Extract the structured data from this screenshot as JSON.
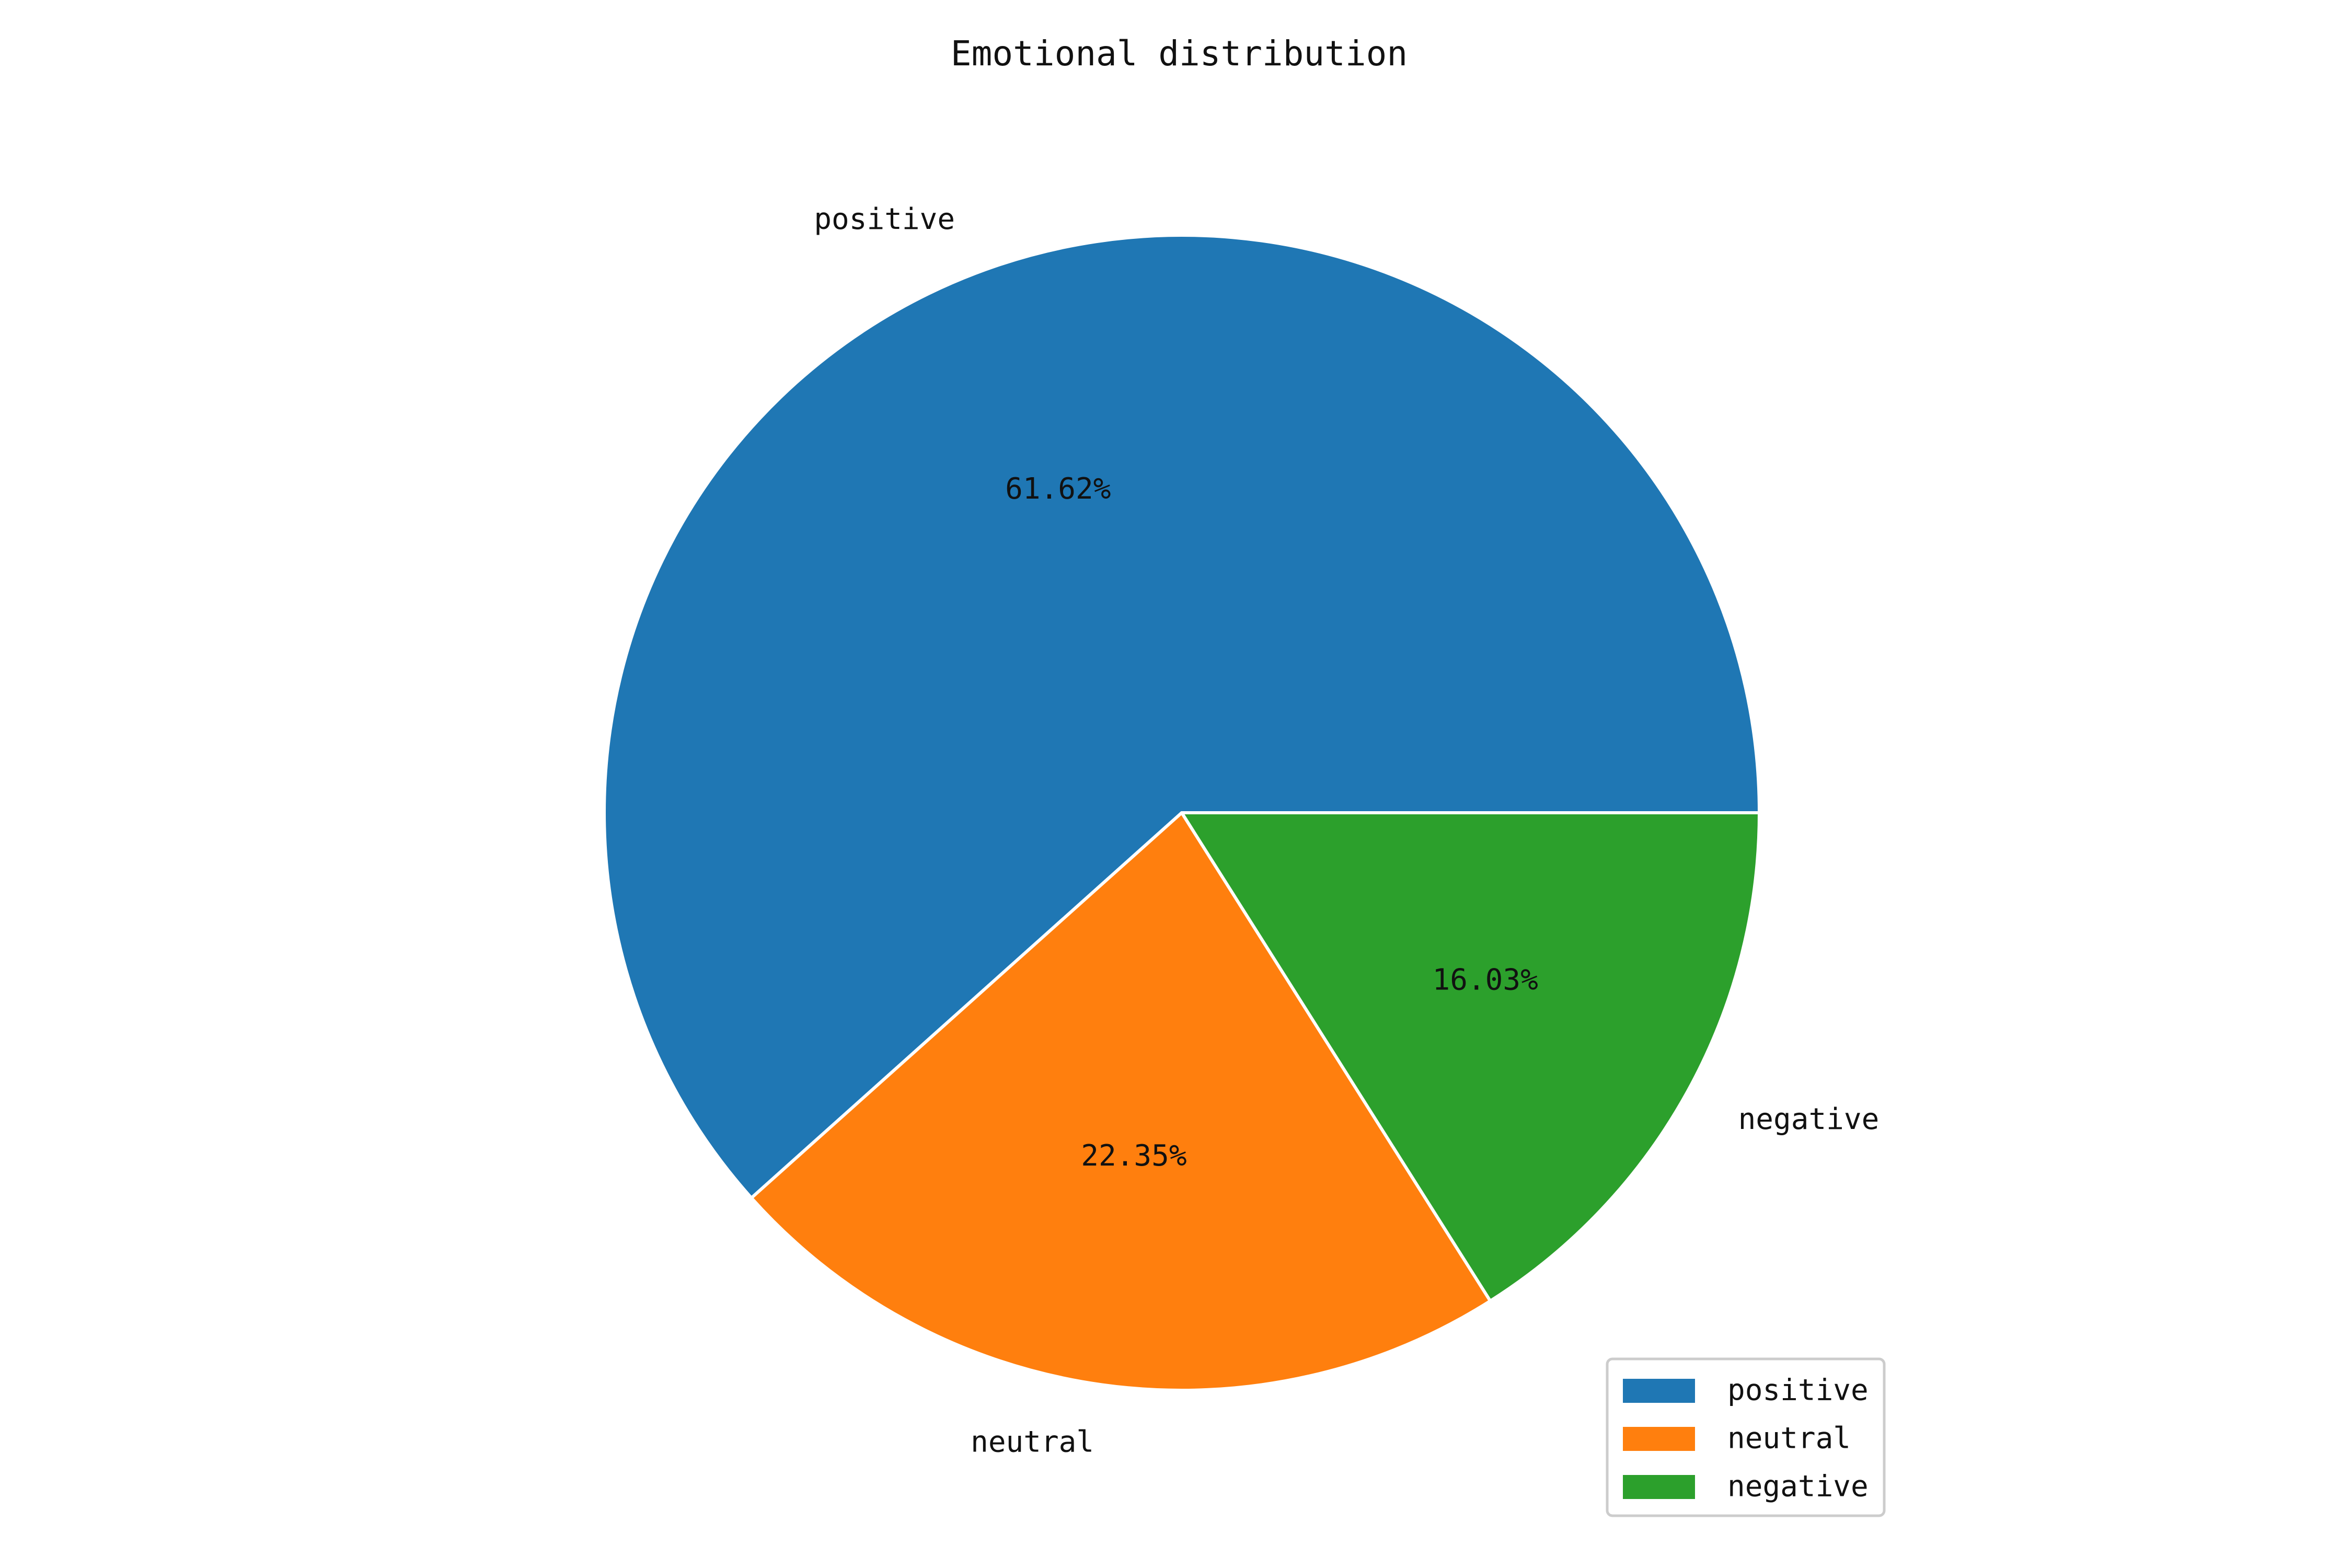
{
  "chart_data": {
    "type": "pie",
    "title": "Emotional distribution",
    "slices": [
      {
        "label": "positive",
        "value": 61.62,
        "pct_label": "61.62%",
        "color": "#1f77b4"
      },
      {
        "label": "neutral",
        "value": 22.35,
        "pct_label": "22.35%",
        "color": "#ff7f0e"
      },
      {
        "label": "negative",
        "value": 16.03,
        "pct_label": "16.03%",
        "color": "#2ca02c"
      }
    ],
    "start_angle_deg": 0,
    "direction": "counterclockwise",
    "legend": {
      "placement": "lower-right",
      "entries": [
        "positive",
        "neutral",
        "negative"
      ]
    }
  }
}
